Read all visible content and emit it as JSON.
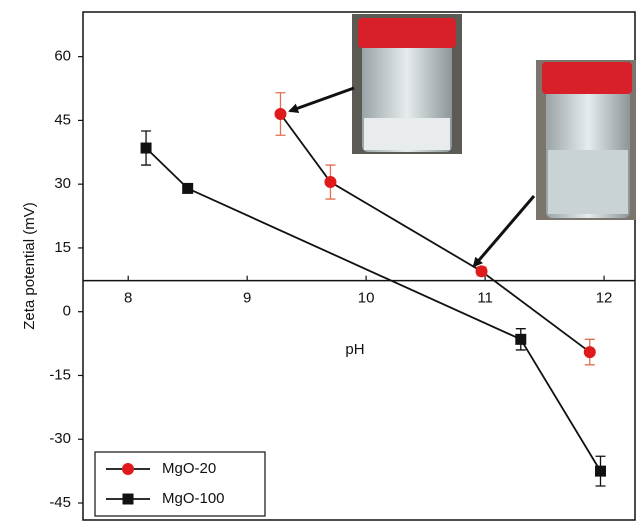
{
  "chart_data": {
    "type": "line",
    "x_label": "pH",
    "y_label": "Zeta potential (mV)",
    "xlim": [
      7.62,
      12.26
    ],
    "ylim": [
      -49,
      70.5
    ],
    "xticks": [
      8,
      9,
      10,
      11,
      12
    ],
    "yticks": [
      -45,
      -30,
      -15,
      0,
      15,
      30,
      45,
      60
    ],
    "x_axis_position": 7.3,
    "legend": "lower left",
    "series": [
      {
        "name": "MgO-20",
        "color": "#e01a1a",
        "marker": "circle",
        "error_color": "#e07050",
        "x": [
          9.28,
          9.7,
          10.97,
          11.88
        ],
        "values": [
          46.5,
          30.5,
          9.5,
          -9.5
        ],
        "errors": [
          5,
          4,
          1,
          3
        ]
      },
      {
        "name": "MgO-100",
        "color": "#111111",
        "marker": "square",
        "error_color": "#111111",
        "x": [
          8.15,
          8.5,
          11.3,
          11.97
        ],
        "values": [
          38.5,
          29,
          -6.5,
          -37.5
        ],
        "errors": [
          4,
          1,
          2.5,
          3.5
        ]
      }
    ]
  }
}
